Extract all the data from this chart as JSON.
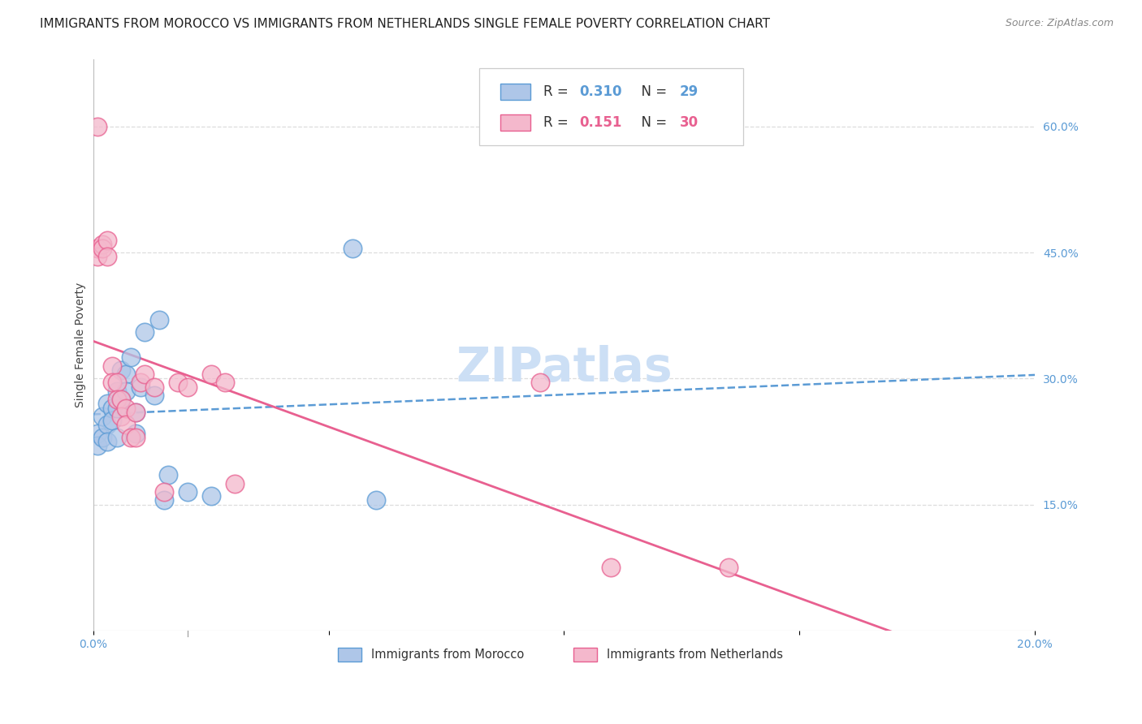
{
  "title": "IMMIGRANTS FROM MOROCCO VS IMMIGRANTS FROM NETHERLANDS SINGLE FEMALE POVERTY CORRELATION CHART",
  "source": "Source: ZipAtlas.com",
  "ylabel": "Single Female Poverty",
  "xlim": [
    0.0,
    0.2
  ],
  "ylim": [
    0.0,
    0.68
  ],
  "xtick_positions": [
    0.0,
    0.05,
    0.1,
    0.15,
    0.2
  ],
  "xticklabels": [
    "0.0%",
    "",
    "",
    "",
    "20.0%"
  ],
  "yticks_right": [
    0.15,
    0.3,
    0.45,
    0.6
  ],
  "ytick_right_labels": [
    "15.0%",
    "30.0%",
    "45.0%",
    "60.0%"
  ],
  "R_morocco": 0.31,
  "N_morocco": 29,
  "R_netherlands": 0.151,
  "N_netherlands": 30,
  "color_morocco": "#aec6e8",
  "color_netherlands": "#f4b8cc",
  "edge_color_morocco": "#5b9bd5",
  "edge_color_netherlands": "#e86090",
  "line_color_morocco": "#5b9bd5",
  "line_color_netherlands": "#e86090",
  "watermark": "ZIPatlas",
  "morocco_x": [
    0.001,
    0.001,
    0.002,
    0.002,
    0.003,
    0.003,
    0.003,
    0.004,
    0.004,
    0.005,
    0.005,
    0.005,
    0.006,
    0.006,
    0.007,
    0.007,
    0.008,
    0.009,
    0.009,
    0.01,
    0.011,
    0.013,
    0.014,
    0.015,
    0.016,
    0.02,
    0.025,
    0.055,
    0.06
  ],
  "morocco_y": [
    0.235,
    0.22,
    0.255,
    0.23,
    0.27,
    0.245,
    0.225,
    0.265,
    0.25,
    0.285,
    0.265,
    0.23,
    0.31,
    0.275,
    0.305,
    0.285,
    0.325,
    0.26,
    0.235,
    0.29,
    0.355,
    0.28,
    0.37,
    0.155,
    0.185,
    0.165,
    0.16,
    0.455,
    0.155
  ],
  "netherlands_x": [
    0.001,
    0.001,
    0.001,
    0.002,
    0.002,
    0.003,
    0.003,
    0.004,
    0.004,
    0.005,
    0.005,
    0.006,
    0.006,
    0.007,
    0.007,
    0.008,
    0.009,
    0.009,
    0.01,
    0.011,
    0.013,
    0.015,
    0.018,
    0.02,
    0.025,
    0.028,
    0.03,
    0.095,
    0.11,
    0.135
  ],
  "netherlands_y": [
    0.6,
    0.455,
    0.445,
    0.46,
    0.455,
    0.465,
    0.445,
    0.315,
    0.295,
    0.295,
    0.275,
    0.275,
    0.255,
    0.265,
    0.245,
    0.23,
    0.26,
    0.23,
    0.295,
    0.305,
    0.29,
    0.165,
    0.295,
    0.29,
    0.305,
    0.295,
    0.175,
    0.295,
    0.075,
    0.075
  ],
  "title_fontsize": 11,
  "axis_label_fontsize": 10,
  "tick_fontsize": 10,
  "watermark_fontsize": 42,
  "watermark_color": "#ccdff5",
  "background_color": "#ffffff",
  "grid_color": "#dddddd"
}
